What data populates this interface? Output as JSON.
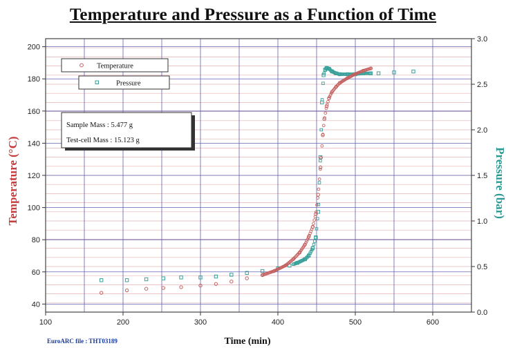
{
  "chart_data": {
    "type": "scatter",
    "title": "Temperature and Pressure as a Function of Time",
    "xlabel": "Time (min)",
    "ylabel_left": "Temperature (°C)",
    "ylabel_right": "Pressure (bar)",
    "xlim": [
      100,
      650
    ],
    "ylim_left": [
      35,
      205
    ],
    "ylim_right": [
      0.0,
      3.0
    ],
    "x_ticks": [
      100,
      200,
      300,
      400,
      500,
      600
    ],
    "y_ticks_left": [
      40,
      60,
      80,
      100,
      120,
      140,
      160,
      180,
      200
    ],
    "y_ticks_right": [
      "0.0",
      "0.5",
      "1.0",
      "1.5",
      "2.0",
      "2.5",
      "3.0"
    ],
    "grid": true,
    "legend_position": "top-left",
    "colors": {
      "temperature": "#c46060",
      "pressure": "#3aa09a",
      "grid_blue": "#6060b0",
      "grid_pink": "#e4b0b0"
    },
    "series": [
      {
        "name": "Temperature",
        "axis": "left",
        "marker": "circle",
        "x": [
          172,
          205,
          230,
          252,
          275,
          300,
          320,
          340,
          360,
          380,
          395,
          410,
          420,
          428,
          435,
          440,
          445,
          449,
          452,
          455,
          458,
          460,
          463,
          466,
          470,
          475,
          480,
          490,
          500,
          510,
          520
        ],
        "y": [
          47,
          48.5,
          49.5,
          50,
          50.5,
          51.5,
          52.5,
          54,
          56,
          58,
          60.5,
          64,
          68,
          72,
          77,
          82,
          88,
          96,
          108,
          125,
          145,
          155,
          163,
          168,
          172,
          175,
          177.5,
          180.5,
          183,
          185,
          186.5
        ]
      },
      {
        "name": "Pressure",
        "axis": "right",
        "marker": "square",
        "x": [
          172,
          205,
          230,
          252,
          275,
          300,
          320,
          340,
          360,
          380,
          400,
          415,
          425,
          435,
          440,
          445,
          449,
          452,
          455,
          457,
          459,
          461,
          463,
          466,
          470,
          475,
          480,
          490,
          500,
          510,
          520,
          530,
          550,
          575
        ],
        "y": [
          0.35,
          0.35,
          0.36,
          0.37,
          0.38,
          0.38,
          0.39,
          0.41,
          0.43,
          0.45,
          0.48,
          0.51,
          0.54,
          0.58,
          0.62,
          0.7,
          0.82,
          1.1,
          1.7,
          2.3,
          2.6,
          2.66,
          2.68,
          2.67,
          2.64,
          2.62,
          2.61,
          2.61,
          2.61,
          2.62,
          2.62,
          2.62,
          2.63,
          2.64
        ]
      }
    ],
    "info_box": {
      "sample_mass": "Sample Mass : 5.477 g",
      "cell_mass": "Test-cell Mass : 15.123 g"
    },
    "footer_note": "EuroARC file : THT03189"
  }
}
